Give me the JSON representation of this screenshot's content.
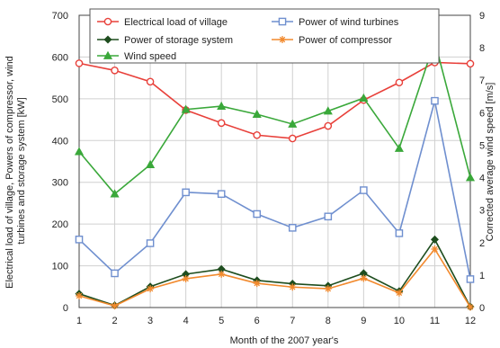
{
  "chart_data": {
    "type": "line",
    "title": "",
    "x": [
      1,
      2,
      3,
      4,
      5,
      6,
      7,
      8,
      9,
      10,
      11,
      12
    ],
    "xlabel": "Month of the  2007 year's",
    "ylabel": [
      "Electrical load of village, Powers of compressor, wind",
      "turbines and storage system [kW]"
    ],
    "y2label": "Corrected average wind speed [m/s]",
    "xlim": [
      1,
      12
    ],
    "ylim": [
      0,
      700
    ],
    "y2lim": [
      0,
      9
    ],
    "yticks": [
      0,
      100,
      200,
      300,
      400,
      500,
      600,
      700
    ],
    "y2ticks": [
      0,
      1,
      2,
      3,
      4,
      5,
      6,
      7,
      8,
      9
    ],
    "grid": true,
    "legend_position": "top",
    "series": [
      {
        "name": "Electrical load of village",
        "axis": "left",
        "color": "#e8403a",
        "marker": "circle-open",
        "values": [
          585,
          568,
          541,
          473,
          442,
          413,
          405,
          435,
          497,
          539,
          587,
          584
        ]
      },
      {
        "name": "Power of wind turbines",
        "axis": "left",
        "color": "#6f8fcf",
        "marker": "square-open",
        "values": [
          163,
          82,
          154,
          276,
          272,
          224,
          191,
          218,
          281,
          178,
          495,
          68
        ]
      },
      {
        "name": "Power of storage system",
        "axis": "left",
        "color": "#1e4d1e",
        "marker": "diamond",
        "values": [
          33,
          5,
          50,
          80,
          92,
          65,
          57,
          52,
          82,
          39,
          163,
          2
        ]
      },
      {
        "name": "Power of compressor",
        "axis": "left",
        "color": "#f28a2e",
        "marker": "star",
        "values": [
          28,
          4,
          45,
          69,
          80,
          58,
          49,
          45,
          70,
          35,
          140,
          1
        ]
      },
      {
        "name": "Wind speed",
        "axis": "right",
        "color": "#3aa83a",
        "marker": "triangle",
        "values": [
          4.8,
          3.5,
          4.4,
          6.1,
          6.2,
          5.95,
          5.65,
          6.05,
          6.45,
          4.9,
          8.2,
          4.0
        ]
      }
    ]
  }
}
